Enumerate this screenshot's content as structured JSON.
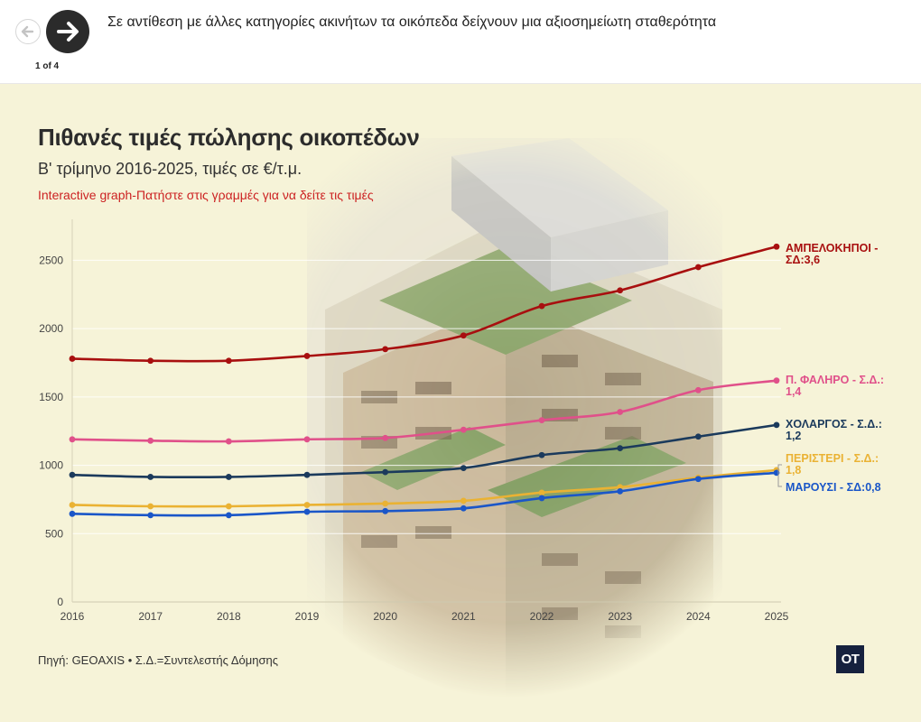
{
  "nav": {
    "prev_icon": "arrow-left-icon",
    "next_icon": "arrow-right-icon",
    "counter": "1 of 4"
  },
  "caption": "Σε αντίθεση με άλλες κατηγορίες ακινήτων τα οικόπεδα δείχνουν μια αξιοσημείωτη σταθερότητα",
  "card": {
    "title": "Πιθανές τιμές πώλησης οικοπέδων",
    "subtitle": "Β' τρίμηνο 2016-2025, τιμές σε €/τ.μ.",
    "hint": "Interactive graph-Πατήστε στις γραμμές για να δείτε τις τιμές",
    "source": "Πηγή: GEOAXIS • Σ.Δ.=Συντελεστής Δόμησης",
    "logo": "ΟΤ"
  },
  "chart_data": {
    "type": "line",
    "title": "Πιθανές τιμές πώλησης οικοπέδων",
    "subtitle": "Β' τρίμηνο 2016-2025, τιμές σε €/τ.μ.",
    "x": [
      2016,
      2017,
      2018,
      2019,
      2020,
      2021,
      2022,
      2023,
      2024,
      2025
    ],
    "ylim": [
      0,
      2800
    ],
    "yticks": [
      0,
      500,
      1000,
      1500,
      2000,
      2500
    ],
    "grid": true,
    "legend": "end-of-line labels",
    "series": [
      {
        "name": "ΑΜΠΕΛΟΚΗΠΟΙ - ΣΔ:3,6",
        "label_lines": [
          "ΑΜΠΕΛΟΚΗΠΟΙ -",
          "ΣΔ:3,6"
        ],
        "color": "#a80f0f",
        "values": [
          1780,
          1765,
          1765,
          1800,
          1850,
          1950,
          2165,
          2280,
          2450,
          2600
        ]
      },
      {
        "name": "Π. ΦΑΛΗΡΟ - Σ.Δ.: 1,4",
        "label_lines": [
          "Π. ΦΑΛΗΡΟ - Σ.Δ.:",
          "1,4"
        ],
        "color": "#e0508a",
        "values": [
          1190,
          1180,
          1175,
          1190,
          1200,
          1260,
          1330,
          1390,
          1550,
          1620
        ]
      },
      {
        "name": "ΧΟΛΑΡΓΟΣ - Σ.Δ.: 1,2",
        "label_lines": [
          "ΧΟΛΑΡΓΟΣ - Σ.Δ.:",
          "1,2"
        ],
        "color": "#1b3a5c",
        "values": [
          930,
          915,
          915,
          930,
          950,
          980,
          1075,
          1125,
          1210,
          1295
        ]
      },
      {
        "name": "ΠΕΡΙΣΤΕΡΙ - Σ.Δ.: 1,8",
        "label_lines": [
          "ΠΕΡΙΣΤΕΡΙ - Σ.Δ.:",
          "1,8"
        ],
        "color": "#eab233",
        "values": [
          710,
          700,
          700,
          710,
          720,
          740,
          800,
          840,
          910,
          965
        ]
      },
      {
        "name": "ΜΑΡΟΥΣΙ - ΣΔ:0,8",
        "label_lines": [
          "ΜΑΡΟΥΣΙ - ΣΔ:0,8"
        ],
        "color": "#1a56c8",
        "values": [
          645,
          635,
          635,
          660,
          665,
          685,
          760,
          810,
          900,
          945
        ]
      }
    ]
  }
}
